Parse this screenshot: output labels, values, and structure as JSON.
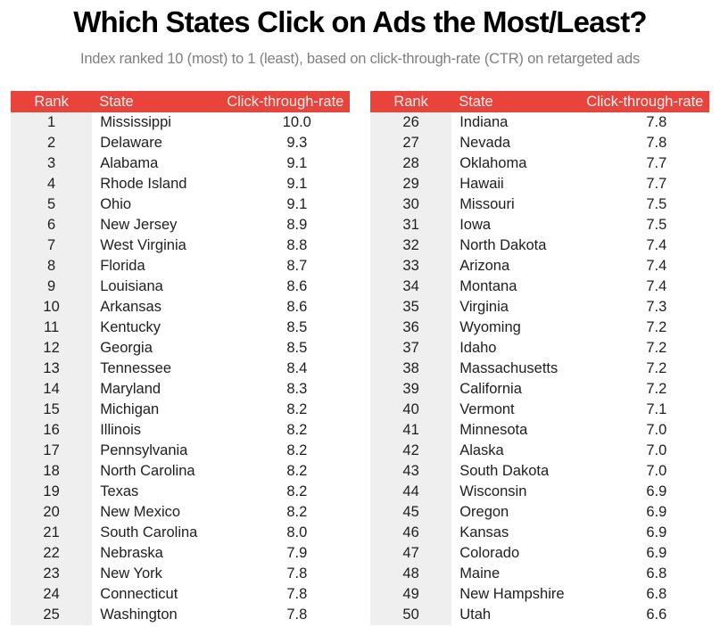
{
  "page": {
    "title": "Which States Click on Ads the Most/Least?",
    "subtitle": "Index ranked 10 (most) to 1 (least), based on click-through-rate (CTR) on retargeted ads"
  },
  "table_headers": {
    "rank": "Rank",
    "state": "State",
    "ctr": "Click-through-rate"
  },
  "colors": {
    "header_bg": "#e9433c",
    "header_text": "#fcefed",
    "rank_column_bg": "#f0efef",
    "body_text": "#1e1e1e",
    "subtitle_text": "#7f7f7f"
  },
  "chart_data": {
    "type": "table",
    "title": "Which States Click on Ads the Most/Least?",
    "subtitle": "Index ranked 10 (most) to 1 (least), based on click-through-rate (CTR) on retargeted ads",
    "columns": [
      "Rank",
      "State",
      "Click-through-rate"
    ],
    "value_range": [
      1,
      10
    ],
    "panels": [
      {
        "rows": [
          [
            "1",
            "Mississippi",
            "10.0"
          ],
          [
            "2",
            "Delaware",
            "9.3"
          ],
          [
            "3",
            "Alabama",
            "9.1"
          ],
          [
            "4",
            "Rhode Island",
            "9.1"
          ],
          [
            "5",
            "Ohio",
            "9.1"
          ],
          [
            "6",
            "New Jersey",
            "8.9"
          ],
          [
            "7",
            "West Virginia",
            "8.8"
          ],
          [
            "8",
            "Florida",
            "8.7"
          ],
          [
            "9",
            "Louisiana",
            "8.6"
          ],
          [
            "10",
            "Arkansas",
            "8.6"
          ],
          [
            "11",
            "Kentucky",
            "8.5"
          ],
          [
            "12",
            "Georgia",
            "8.5"
          ],
          [
            "13",
            "Tennessee",
            "8.4"
          ],
          [
            "14",
            "Maryland",
            "8.3"
          ],
          [
            "15",
            "Michigan",
            "8.2"
          ],
          [
            "16",
            "Illinois",
            "8.2"
          ],
          [
            "17",
            "Pennsylvania",
            "8.2"
          ],
          [
            "18",
            "North Carolina",
            "8.2"
          ],
          [
            "19",
            "Texas",
            "8.2"
          ],
          [
            "20",
            "New Mexico",
            "8.2"
          ],
          [
            "21",
            "South Carolina",
            "8.0"
          ],
          [
            "22",
            "Nebraska",
            "7.9"
          ],
          [
            "23",
            "New York",
            "7.8"
          ],
          [
            "24",
            "Connecticut",
            "7.8"
          ],
          [
            "25",
            "Washington",
            "7.8"
          ]
        ]
      },
      {
        "rows": [
          [
            "26",
            "Indiana",
            "7.8"
          ],
          [
            "27",
            "Nevada",
            "7.8"
          ],
          [
            "28",
            "Oklahoma",
            "7.7"
          ],
          [
            "29",
            "Hawaii",
            "7.7"
          ],
          [
            "30",
            "Missouri",
            "7.5"
          ],
          [
            "31",
            "Iowa",
            "7.5"
          ],
          [
            "32",
            "North Dakota",
            "7.4"
          ],
          [
            "33",
            "Arizona",
            "7.4"
          ],
          [
            "34",
            "Montana",
            "7.4"
          ],
          [
            "35",
            "Virginia",
            "7.3"
          ],
          [
            "36",
            "Wyoming",
            "7.2"
          ],
          [
            "37",
            "Idaho",
            "7.2"
          ],
          [
            "38",
            "Massachusetts",
            "7.2"
          ],
          [
            "39",
            "California",
            "7.2"
          ],
          [
            "40",
            "Vermont",
            "7.1"
          ],
          [
            "41",
            "Minnesota",
            "7.0"
          ],
          [
            "42",
            "Alaska",
            "7.0"
          ],
          [
            "43",
            "South Dakota",
            "7.0"
          ],
          [
            "44",
            "Wisconsin",
            "6.9"
          ],
          [
            "45",
            "Oregon",
            "6.9"
          ],
          [
            "46",
            "Kansas",
            "6.9"
          ],
          [
            "47",
            "Colorado",
            "6.9"
          ],
          [
            "48",
            "Maine",
            "6.8"
          ],
          [
            "49",
            "New Hampshire",
            "6.8"
          ],
          [
            "50",
            "Utah",
            "6.6"
          ]
        ]
      }
    ]
  }
}
